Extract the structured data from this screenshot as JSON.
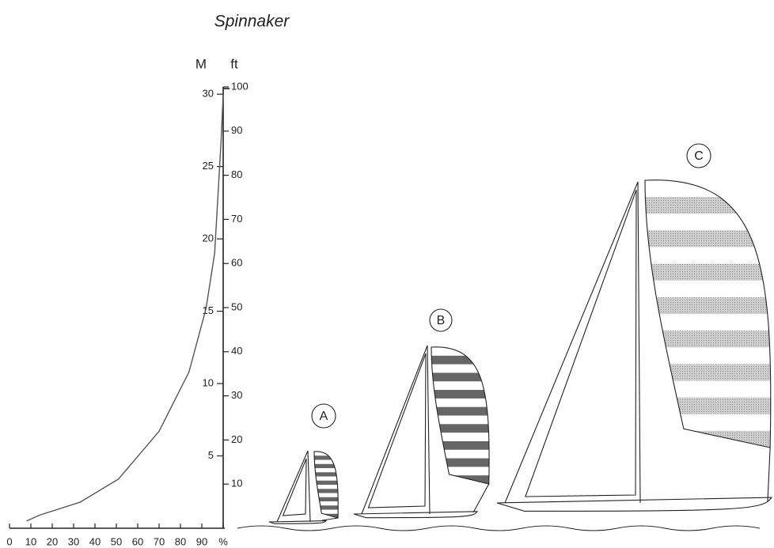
{
  "chart_data": {
    "type": "line",
    "title": "Spinnaker",
    "y_label": "M",
    "y2_label": "ft",
    "x": [
      8,
      14,
      33,
      51,
      70,
      84,
      92,
      96,
      99,
      100
    ],
    "values": [
      0.5,
      0.9,
      1.8,
      3.4,
      6.7,
      10.8,
      15.2,
      19,
      26.7,
      30
    ],
    "color": "#555555",
    "xlim": [
      0,
      100
    ],
    "xticks": [
      0,
      10,
      20,
      30,
      40,
      50,
      60,
      70,
      80,
      90,
      {
        "value": 100,
        "label": "%"
      }
    ],
    "ylim": [
      0,
      30.5
    ],
    "yticks": [
      5,
      10,
      15,
      20,
      25,
      30
    ],
    "y2lim": [
      0,
      100
    ],
    "y2ticks": [
      10,
      20,
      30,
      40,
      50,
      60,
      70,
      80,
      90,
      100
    ],
    "annotations": [
      "A",
      "B",
      "C"
    ]
  }
}
